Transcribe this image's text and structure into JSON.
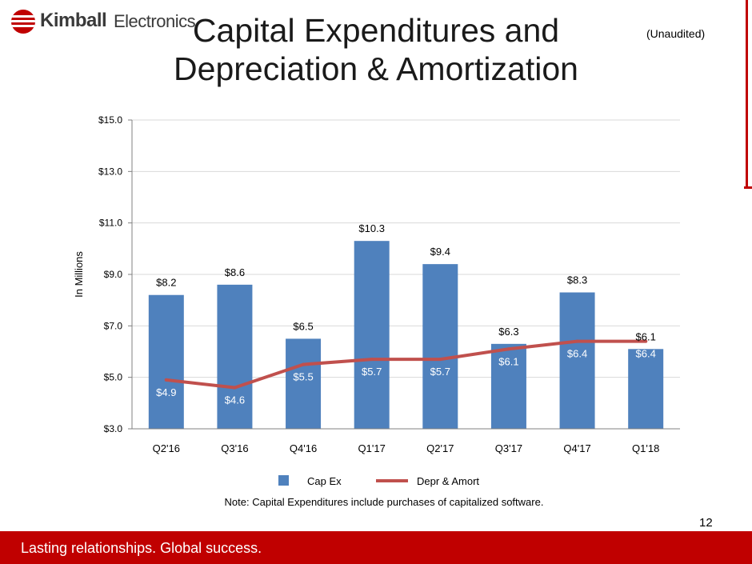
{
  "header": {
    "logo_brand": "Kimball",
    "logo_suffix": "Electronics",
    "title_line1": "Capital Expenditures and",
    "title_line2": "Depreciation & Amortization",
    "unaudited": "(Unaudited)"
  },
  "chart_data": {
    "type": "bar",
    "categories": [
      "Q2'16",
      "Q3'16",
      "Q4'16",
      "Q1'17",
      "Q2'17",
      "Q3'17",
      "Q4'17",
      "Q1'18"
    ],
    "series": [
      {
        "name": "Cap Ex",
        "kind": "bar",
        "color": "#4f81bd",
        "values": [
          8.2,
          8.6,
          6.5,
          10.3,
          9.4,
          6.3,
          8.3,
          6.1
        ],
        "labels": [
          "$8.2",
          "$8.6",
          "$6.5",
          "$10.3",
          "$9.4",
          "$6.3",
          "$8.3",
          "$6.1"
        ]
      },
      {
        "name": "Depr & Amort",
        "kind": "line",
        "color": "#c0504d",
        "values": [
          4.9,
          4.6,
          5.5,
          5.7,
          5.7,
          6.1,
          6.4,
          6.4
        ],
        "labels": [
          "$4.9",
          "$4.6",
          "$5.5",
          "$5.7",
          "$5.7",
          "$6.1",
          "$6.4",
          "$6.4"
        ]
      }
    ],
    "title": "",
    "xlabel": "",
    "ylabel": "In Millions",
    "ylim": [
      3.0,
      15.0
    ],
    "yticks": [
      3.0,
      5.0,
      7.0,
      9.0,
      11.0,
      13.0,
      15.0
    ],
    "ytick_labels": [
      "$3.0",
      "$5.0",
      "$7.0",
      "$9.0",
      "$11.0",
      "$13.0",
      "$15.0"
    ],
    "grid": true,
    "legend": "bottom",
    "note": "Note:  Capital Expenditures include purchases of capitalized software."
  },
  "footer": {
    "page_number": "12",
    "tagline": "Lasting relationships. Global success."
  }
}
